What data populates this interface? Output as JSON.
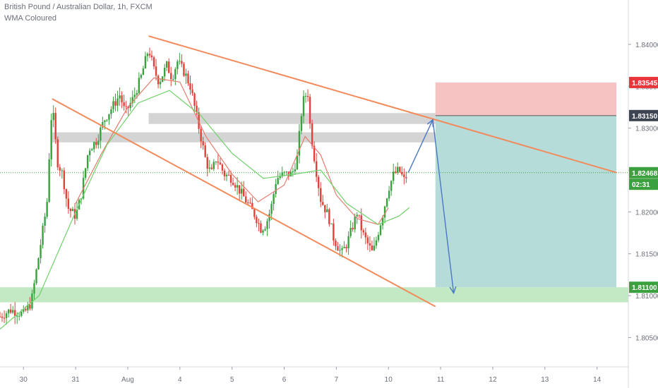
{
  "header": {
    "title": "British Pound / Australian Dollar, 1h, FXCM",
    "indicator": "WMA Coloured"
  },
  "colors": {
    "up": "#3aa13e",
    "down": "#e0413a",
    "wma_slow": "#e57c6e",
    "wma_fast": "#6fd26a",
    "trendline": "#f28a5b",
    "projection": "#4a78c2",
    "stop_zone": "#f4b7b7",
    "target_zone": "#a9d6d4",
    "support_band": "#b7e5b9",
    "resistance_band": "#cfcfcf",
    "badge_red": "#e8373b",
    "badge_dark": "#3d4452",
    "badge_green": "#3aa13e"
  },
  "chart_data": {
    "type": "candlestick",
    "title": "British Pound / Australian Dollar, 1h, FXCM",
    "x_axis": {
      "tick_labels": [
        "30",
        "31",
        "Aug",
        "4",
        "5",
        "6",
        "7",
        "10",
        "11",
        "12",
        "13",
        "14"
      ],
      "tick_days": [
        0,
        1,
        2,
        3,
        4,
        5,
        6,
        7,
        8,
        9,
        10,
        11
      ],
      "range_days": [
        -0.45,
        11.6
      ]
    },
    "y_axis": {
      "tick_labels": [
        "1.80500",
        "1.81000",
        "1.81500",
        "1.82000",
        "1.82500",
        "1.83000",
        "1.83500",
        "1.84000"
      ],
      "range": [
        1.8015,
        1.8453
      ]
    },
    "price_badges": [
      {
        "label": "1.83545",
        "value": 1.83545,
        "kind": "stop"
      },
      {
        "label": "1.83150",
        "value": 1.8315,
        "kind": "entry"
      },
      {
        "label": "1.82468",
        "value": 1.82468,
        "kind": "last"
      },
      {
        "label": "02:31",
        "value": 1.8233,
        "kind": "countdown"
      },
      {
        "label": "1.81100",
        "value": 1.811,
        "kind": "target"
      }
    ],
    "current_price": 1.82468,
    "path_points": [
      [
        -0.45,
        1.8075
      ],
      [
        -0.25,
        1.8083
      ],
      [
        0.0,
        1.8078
      ],
      [
        0.15,
        1.8092
      ],
      [
        0.3,
        1.815
      ],
      [
        0.45,
        1.821
      ],
      [
        0.5,
        1.8275
      ],
      [
        0.55,
        1.833
      ],
      [
        0.65,
        1.826
      ],
      [
        0.75,
        1.8245
      ],
      [
        0.85,
        1.8205
      ],
      [
        1.0,
        1.8195
      ],
      [
        1.1,
        1.8218
      ],
      [
        1.25,
        1.8275
      ],
      [
        1.4,
        1.8285
      ],
      [
        1.55,
        1.831
      ],
      [
        1.7,
        1.8325
      ],
      [
        1.85,
        1.834
      ],
      [
        1.95,
        1.8318
      ],
      [
        2.1,
        1.8335
      ],
      [
        2.25,
        1.836
      ],
      [
        2.4,
        1.8395
      ],
      [
        2.5,
        1.837
      ],
      [
        2.6,
        1.8355
      ],
      [
        2.75,
        1.8375
      ],
      [
        2.85,
        1.836
      ],
      [
        2.95,
        1.838
      ],
      [
        3.1,
        1.8365
      ],
      [
        3.2,
        1.835
      ],
      [
        3.3,
        1.832
      ],
      [
        3.4,
        1.829
      ],
      [
        3.5,
        1.826
      ],
      [
        3.6,
        1.8245
      ],
      [
        3.7,
        1.8265
      ],
      [
        3.85,
        1.8245
      ],
      [
        4.0,
        1.824
      ],
      [
        4.15,
        1.8225
      ],
      [
        4.3,
        1.821
      ],
      [
        4.45,
        1.8195
      ],
      [
        4.55,
        1.818
      ],
      [
        4.65,
        1.8185
      ],
      [
        4.75,
        1.8205
      ],
      [
        4.85,
        1.824
      ],
      [
        5.0,
        1.8245
      ],
      [
        5.15,
        1.8245
      ],
      [
        5.25,
        1.8265
      ],
      [
        5.35,
        1.833
      ],
      [
        5.45,
        1.8345
      ],
      [
        5.5,
        1.83
      ],
      [
        5.6,
        1.8255
      ],
      [
        5.7,
        1.8215
      ],
      [
        5.85,
        1.8195
      ],
      [
        5.95,
        1.8168
      ],
      [
        6.1,
        1.815
      ],
      [
        6.2,
        1.8162
      ],
      [
        6.3,
        1.818
      ],
      [
        6.4,
        1.82
      ],
      [
        6.5,
        1.8175
      ],
      [
        6.6,
        1.8162
      ],
      [
        6.7,
        1.815
      ],
      [
        6.8,
        1.8175
      ],
      [
        6.9,
        1.82
      ],
      [
        7.0,
        1.8228
      ],
      [
        7.1,
        1.8245
      ],
      [
        7.2,
        1.825
      ],
      [
        7.3,
        1.8238
      ],
      [
        7.38,
        1.8246
      ]
    ],
    "wma_slow_points": [
      [
        1.0,
        1.821
      ],
      [
        1.5,
        1.827
      ],
      [
        2.0,
        1.8325
      ],
      [
        2.5,
        1.836
      ],
      [
        3.0,
        1.8355
      ],
      [
        3.5,
        1.829
      ],
      [
        4.0,
        1.8245
      ],
      [
        4.5,
        1.8212
      ],
      [
        5.0,
        1.8232
      ],
      [
        5.4,
        1.829
      ],
      [
        5.7,
        1.8268
      ],
      [
        6.0,
        1.822
      ],
      [
        6.4,
        1.8192
      ],
      [
        6.8,
        1.8185
      ],
      [
        7.0,
        1.8205
      ]
    ],
    "wma_fast_points": [
      [
        -0.45,
        1.806
      ],
      [
        0.3,
        1.81
      ],
      [
        1.0,
        1.82
      ],
      [
        1.6,
        1.828
      ],
      [
        2.2,
        1.833
      ],
      [
        2.8,
        1.8345
      ],
      [
        3.4,
        1.8315
      ],
      [
        4.0,
        1.827
      ],
      [
        4.6,
        1.824
      ],
      [
        5.2,
        1.8245
      ],
      [
        5.7,
        1.825
      ],
      [
        6.2,
        1.821
      ],
      [
        6.8,
        1.8185
      ],
      [
        7.2,
        1.8195
      ],
      [
        7.4,
        1.8205
      ]
    ],
    "trendlines": [
      {
        "name": "upper",
        "from": [
          2.4,
          1.841
        ],
        "to": [
          11.37,
          1.8247
        ]
      },
      {
        "name": "lower",
        "from": [
          0.55,
          1.8335
        ],
        "to": [
          7.9,
          1.8087
        ]
      }
    ],
    "zones": {
      "stop": {
        "x": [
          7.9,
          11.37
        ],
        "y": [
          1.8315,
          1.83545
        ]
      },
      "target": {
        "x": [
          7.9,
          11.37
        ],
        "y": [
          1.811,
          1.8315
        ]
      },
      "support_band": {
        "y": [
          1.8092,
          1.811
        ]
      },
      "resistance_bands": [
        {
          "x": [
            2.4,
            7.9
          ],
          "y": [
            1.8305,
            1.8318
          ]
        },
        {
          "x": [
            0.55,
            7.9
          ],
          "y": [
            1.8283,
            1.8295
          ]
        }
      ]
    },
    "projection": [
      [
        7.38,
        1.8247
      ],
      [
        7.85,
        1.831
      ],
      [
        8.25,
        1.8103
      ]
    ]
  }
}
